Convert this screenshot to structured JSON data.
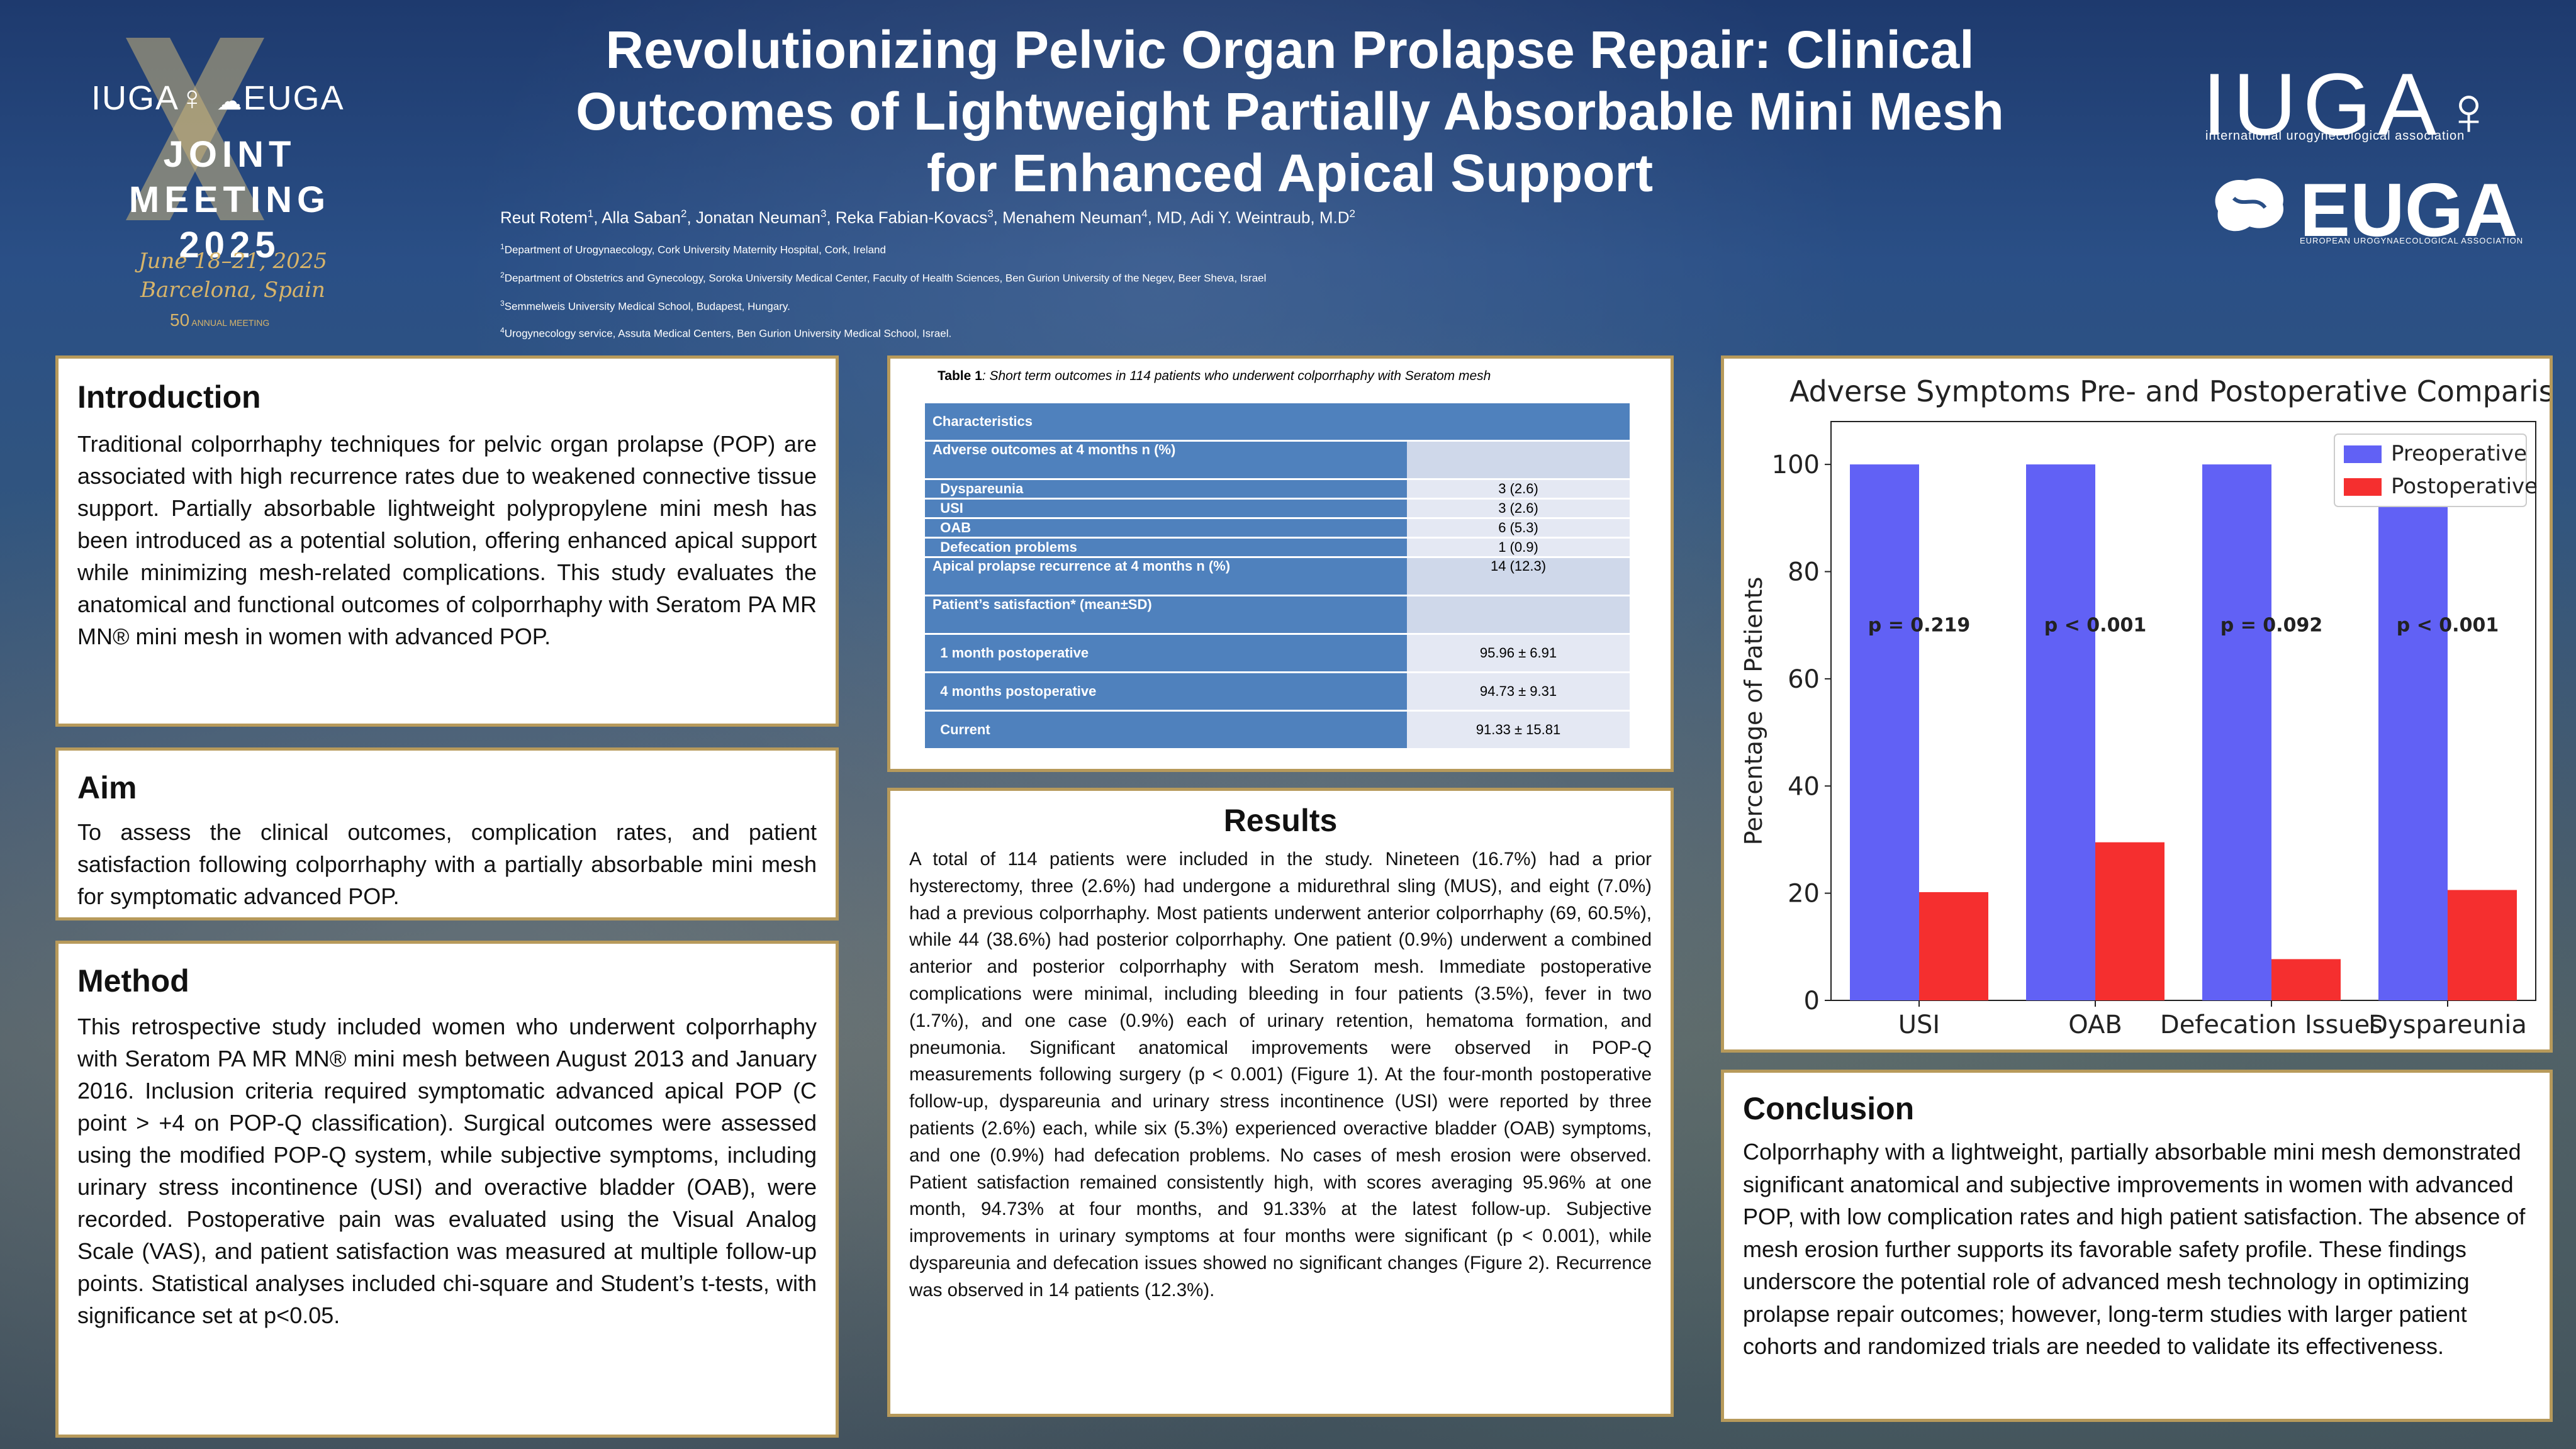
{
  "header": {
    "title": "Revolutionizing Pelvic Organ Prolapse Repair: Clinical Outcomes of Lightweight Partially Absorbable Mini Mesh for Enhanced Apical Support",
    "authors": [
      {
        "name": "Reut Rotem",
        "sup": "1"
      },
      {
        "name": "Alla Saban",
        "sup": "2"
      },
      {
        "name": "Jonatan Neuman",
        "sup": "3"
      },
      {
        "name": "Reka Fabian-Kovacs",
        "sup": "3"
      },
      {
        "name": "Menahem Neuman",
        "sup": "4",
        "suffix": ", MD"
      },
      {
        "name": "Adi Y. Weintraub, M.D",
        "sup": "2"
      }
    ],
    "affiliations": [
      {
        "sup": "1",
        "text": "Department of Urogynaecology, Cork University Maternity Hospital, Cork, Ireland"
      },
      {
        "sup": "2",
        "text": "Department of Obstetrics and Gynecology, Soroka University Medical Center, Faculty of Health Sciences, Ben Gurion University of the Negev, Beer Sheva, Israel"
      },
      {
        "sup": "3",
        "text": "Semmelweis University Medical School, Budapest, Hungary."
      },
      {
        "sup": "4",
        "text": "Urogynecology service, Assuta Medical Centers, Ben Gurion University Medical School, Israel."
      }
    ]
  },
  "left_logo": {
    "iuga": "IUGA",
    "euga": "EUGA",
    "joint_line1": "JOINT MEETING",
    "joint_line2": "2025",
    "dates": "June 18–21, 2025",
    "place": "Barcelona, Spain",
    "anniv_number": "50",
    "anniv_label": "ANNUAL MEETING"
  },
  "right_logo": {
    "iuga": "IUGA",
    "iuga_sub": "international urogynecological association",
    "euga": "EUGA",
    "euga_sub": "EUROPEAN UROGYNAECOLOGICAL ASSOCIATION"
  },
  "introduction": {
    "heading": "Introduction",
    "text": "Traditional colporrhaphy techniques for pelvic organ prolapse (POP) are associated with high recurrence rates due to weakened connective tissue support. Partially absorbable lightweight polypropylene mini mesh has been introduced as a potential solution, offering enhanced apical support while minimizing mesh-related complications. This study evaluates the anatomical and functional outcomes of colporrhaphy with Seratom PA MR MN® mini mesh in women with advanced POP."
  },
  "aim": {
    "heading": "Aim",
    "text": "To assess the clinical outcomes, complication rates, and  patient satisfaction following colporrhaphy with a partially absorbable mini mesh for symptomatic advanced POP."
  },
  "method": {
    "heading": "Method",
    "text": "This retrospective study included women who underwent colporrhaphy with Seratom PA MR MN® mini mesh between August 2013 and January 2016. Inclusion criteria required symptomatic advanced apical POP (C point > +4 on POP-Q classification). Surgical outcomes were assessed using the modified POP-Q system, while subjective symptoms, including urinary stress incontinence (USI) and overactive bladder (OAB), were recorded. Postoperative pain was evaluated using the Visual Analog Scale (VAS), and patient satisfaction was measured at multiple follow-up points. Statistical analyses included chi-square and Student’s t-tests, with significance set at p<0.05."
  },
  "table": {
    "caption_bold": "Table 1",
    "caption_rest": ": Short term outcomes in 114 patients who underwent colporrhaphy with Seratom mesh",
    "rows": [
      {
        "label": "Characteristics",
        "value": "",
        "kind": "hdr"
      },
      {
        "label": "Adverse outcomes at 4 months n (%)",
        "value": "",
        "kind": "sec"
      },
      {
        "label": "Dyspareunia",
        "value": "3 (2.6)",
        "kind": "item"
      },
      {
        "label": "USI",
        "value": "3 (2.6)",
        "kind": "item"
      },
      {
        "label": "OAB",
        "value": "6 (5.3)",
        "kind": "item"
      },
      {
        "label": "Defecation problems",
        "value": "1 (0.9)",
        "kind": "item"
      },
      {
        "label": "Apical prolapse recurrence at 4 months n (%)",
        "value": "14 (12.3)",
        "kind": "sec2"
      },
      {
        "label": "Patient’s satisfaction* (mean±SD)",
        "value": "",
        "kind": "sec3"
      },
      {
        "label": "1 month postoperative",
        "value": "95.96 ± 6.91",
        "kind": "tall"
      },
      {
        "label": "4 months postoperative",
        "value": "94.73 ± 9.31",
        "kind": "tall"
      },
      {
        "label": "Current",
        "value": "91.33 ± 15.81",
        "kind": "tall"
      }
    ]
  },
  "results": {
    "heading": "Results",
    "text": "A total of 114 patients were included in the study. Nineteen (16.7%) had a prior hysterectomy, three (2.6%) had undergone a midurethral sling (MUS), and eight (7.0%) had a previous colporrhaphy. Most patients underwent anterior colporrhaphy (69, 60.5%), while 44 (38.6%) had posterior colporrhaphy. One patient (0.9%) underwent a combined anterior and posterior colporrhaphy with Seratom mesh. Immediate postoperative complications were minimal, including bleeding in four patients (3.5%), fever in two (1.7%), and one case (0.9%) each of urinary retention, hematoma formation, and pneumonia. Significant anatomical improvements were observed in POP-Q measurements following surgery (p < 0.001) (Figure 1). At the four-month postoperative follow-up, dyspareunia and urinary stress incontinence (USI) were reported by three patients (2.6%) each, while six (5.3%) experienced overactive bladder (OAB) symptoms, and one (0.9%) had defecation problems. No cases of mesh erosion were observed. Patient satisfaction remained consistently high, with scores averaging 95.96% at one month, 94.73% at four months, and 91.33% at the latest follow-up. Subjective improvements in urinary symptoms at four months were significant (p < 0.001), while dyspareunia and defecation issues showed no significant changes (Figure 2). Recurrence was observed in 14 patients (12.3%)."
  },
  "conclusion": {
    "heading": "Conclusion",
    "text": "Colporrhaphy with a lightweight, partially absorbable mini mesh demonstrated significant anatomical and subjective improvements in women with advanced POP, with low complication rates and high patient satisfaction. The absence of mesh erosion further supports its favorable safety profile. These findings underscore the potential role of advanced mesh technology in optimizing prolapse repair outcomes; however, long-term studies with larger patient cohorts and randomized trials are needed to validate its effectiveness."
  },
  "colors": {
    "preoperative": "#6161f5",
    "postoperative": "#f52f2f",
    "panel_border": "#b79a5b",
    "table_header": "#4f81bd"
  },
  "chart_data": {
    "type": "bar",
    "title": "Adverse Symptoms Pre- and Postoperative Comparison",
    "xlabel": "",
    "ylabel": "Percentage of Patients",
    "categories": [
      "USI",
      "OAB",
      "Defecation Issues",
      "Dyspareunia"
    ],
    "series": [
      {
        "name": "Preoperative",
        "values": [
          100,
          100,
          100,
          100
        ]
      },
      {
        "name": "Postoperative",
        "values": [
          20.2,
          29.5,
          7.7,
          20.6
        ]
      }
    ],
    "annotations": [
      "p = 0.219",
      "p < 0.001",
      "p = 0.092",
      "p < 0.001"
    ],
    "ylim": [
      0,
      108
    ],
    "yticks": [
      "0",
      "20",
      "40",
      "60",
      "80",
      "100"
    ],
    "legend": "top-right",
    "grid": false
  }
}
